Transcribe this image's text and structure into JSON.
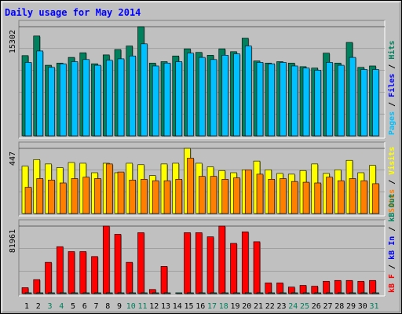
{
  "colors": {
    "background": "#c0c0c0",
    "title": "#0000ff",
    "hits": "#00805c",
    "files": "#00c0ff",
    "pages": "#00c0ff",
    "visits": "#ffff00",
    "sites": "#ff8000",
    "kb_f": "#ff0000",
    "kb_in": "#0000ff",
    "kb_out": "#00805c",
    "weekday_label": "#000000",
    "weekend_label": "#00805c",
    "separator": "#000000"
  },
  "chart_data": {
    "type": "bar",
    "title": "Daily usage for May 2014",
    "categories": [
      "1",
      "2",
      "3",
      "4",
      "5",
      "6",
      "7",
      "8",
      "9",
      "10",
      "11",
      "12",
      "13",
      "14",
      "15",
      "16",
      "17",
      "18",
      "19",
      "20",
      "21",
      "22",
      "23",
      "24",
      "25",
      "26",
      "27",
      "28",
      "29",
      "30",
      "31"
    ],
    "weekend_days": [
      "3",
      "4",
      "10",
      "11",
      "17",
      "18",
      "24",
      "25",
      "31"
    ],
    "panels": [
      {
        "name": "hits_files",
        "max_label": "15302",
        "ylim": [
          0,
          15302
        ],
        "legend": [
          {
            "text": "Pages",
            "color": "#00c0ff"
          },
          {
            "text": " / ",
            "color": "#000000"
          },
          {
            "text": "Files",
            "color": "#0000ff"
          },
          {
            "text": " / ",
            "color": "#000000"
          },
          {
            "text": "Hits",
            "color": "#00805c"
          }
        ],
        "series": [
          {
            "name": "Hits",
            "color": "#00805c",
            "values": [
              11250,
              14000,
              9900,
              10200,
              11000,
              11650,
              10100,
              11350,
              12100,
              12600,
              15302,
              10200,
              10400,
              11200,
              12200,
              11700,
              11300,
              12200,
              11800,
              13700,
              10500,
              10200,
              10400,
              10200,
              9700,
              9500,
              11600,
              10200,
              13100,
              9600,
              9800
            ]
          },
          {
            "name": "Files",
            "color": "#00c0ff",
            "values": [
              10300,
              11900,
              9600,
              10100,
              10400,
              10700,
              9900,
              10600,
              10800,
              11200,
              12900,
              9800,
              10200,
              10400,
              11600,
              11000,
              10700,
              11300,
              11500,
              12600,
              10300,
              10100,
              10300,
              9800,
              9500,
              9200,
              10300,
              9900,
              11000,
              9300,
              9300
            ]
          }
        ]
      },
      {
        "name": "visits_sites",
        "max_label": "447",
        "ylim": [
          0,
          447
        ],
        "legend": [
          {
            "text": "Sites",
            "color": "#ff8000"
          },
          {
            "text": " / ",
            "color": "#000000"
          },
          {
            "text": "Visits",
            "color": "#ffff00"
          }
        ],
        "series": [
          {
            "name": "Visits",
            "color": "#ffff00",
            "values": [
              325,
              370,
              340,
              315,
              350,
              345,
              280,
              345,
              280,
              345,
              335,
              260,
              340,
              345,
              447,
              345,
              320,
              295,
              280,
              300,
              360,
              300,
              275,
              270,
              295,
              340,
              275,
              300,
              365,
              280,
              330
            ]
          },
          {
            "name": "Sites",
            "color": "#ff8000",
            "values": [
              180,
              240,
              230,
              210,
              240,
              250,
              240,
              340,
              285,
              230,
              235,
              225,
              225,
              235,
              380,
              255,
              255,
              235,
              245,
              300,
              270,
              235,
              240,
              220,
              215,
              210,
              250,
              225,
              240,
              225,
              205
            ]
          }
        ]
      },
      {
        "name": "kbytes",
        "max_label": "81961",
        "ylim": [
          0,
          81961
        ],
        "legend": [
          {
            "text": "kB F",
            "color": "#ff0000"
          },
          {
            "text": " / ",
            "color": "#000000"
          },
          {
            "text": "kB In",
            "color": "#0000ff"
          },
          {
            "text": " / ",
            "color": "#000000"
          },
          {
            "text": "kB Out",
            "color": "#00805c"
          }
        ],
        "series": [
          {
            "name": "kB F",
            "color": "#ff0000",
            "values": [
              7200,
              17000,
              38000,
              57000,
              51000,
              51000,
              45000,
              81961,
              72000,
              38000,
              74000,
              5000,
              33000,
              0,
              74000,
              74000,
              69000,
              81961,
              61000,
              75000,
              63000,
              13000,
              13000,
              8000,
              10000,
              9000,
              15000,
              16000,
              16000,
              15000,
              16000
            ]
          },
          {
            "name": "kB Out",
            "color": "#00805c",
            "values": [
              1000,
              1000,
              1000,
              1000,
              1000,
              1000,
              1000,
              1000,
              1000,
              1000,
              1000,
              1000,
              1000,
              1000,
              1000,
              1000,
              1000,
              1000,
              1000,
              1000,
              1000,
              1000,
              1000,
              1000,
              1000,
              1000,
              1000,
              1000,
              1000,
              1000,
              1000
            ]
          }
        ]
      }
    ]
  }
}
